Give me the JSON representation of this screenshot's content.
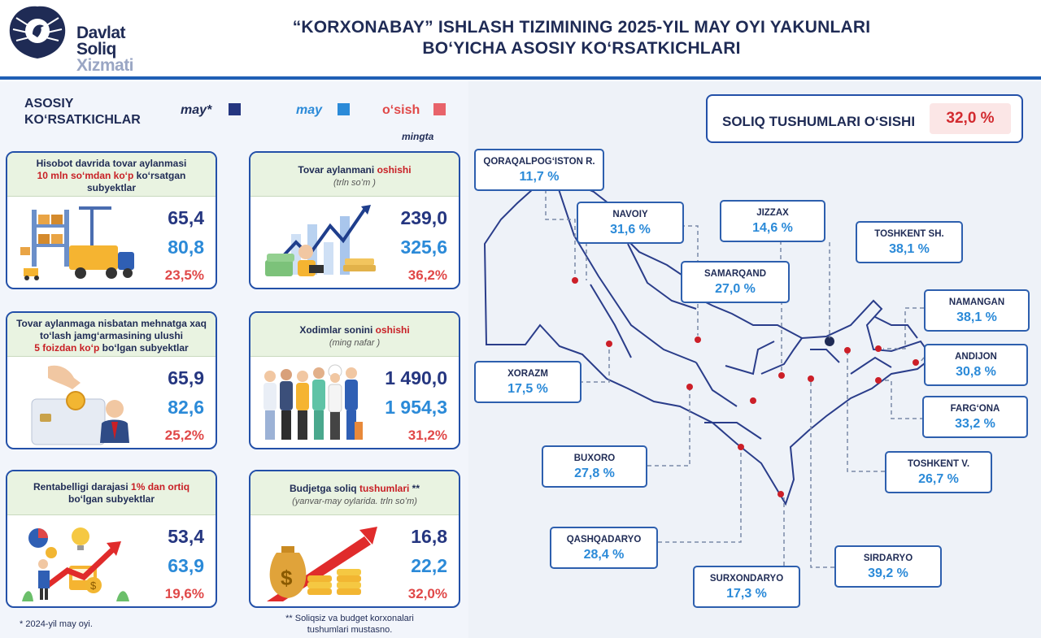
{
  "brand": {
    "line1": "Davlat",
    "line2": "Soliq",
    "line3": "Xizmati"
  },
  "header": {
    "title_line1": "“KORXONABAY” ISHLASH TIZIMINING 2025-YIL MAY OYI YAKUNLARI",
    "title_line2": "BOʻYICHA ASOSIY KOʻRSATKICHLARI"
  },
  "legend": {
    "title": "ASOSIY KOʻRSATKICHLAR",
    "items": [
      {
        "label": "may*",
        "color": "#253680"
      },
      {
        "label": "may",
        "color": "#2b8ad8"
      },
      {
        "label": "oʻsish",
        "color": "#e8636a"
      }
    ],
    "unit": "mingta"
  },
  "cards": [
    {
      "title_a": "Hisobot davrida tovar aylanmasi",
      "title_b": "10 mln soʻmdan koʻp",
      "title_c": "koʻrsatgan subyektlar",
      "subtitle": "",
      "icon": "warehouse-truck-icon",
      "prev": "65,4",
      "curr": "80,8",
      "growth": "23,5%"
    },
    {
      "title_a": "Tovar aylanmani",
      "title_b": "oshishi",
      "title_c": "",
      "subtitle": "(trln soʻm )",
      "icon": "money-growth-icon",
      "prev": "239,0",
      "curr": "325,6",
      "growth": "36,2%"
    },
    {
      "title_a": "Tovar aylanmaga nisbatan mehnatga xaq toʻlash jamgʻarmasining ulushi",
      "title_b": "5 foizdan koʻp",
      "title_c": "boʻlgan subyektlar",
      "subtitle": "",
      "icon": "payroll-card-icon",
      "prev": "65,9",
      "curr": "82,6",
      "growth": "25,2%"
    },
    {
      "title_a": "Xodimlar sonini",
      "title_b": "oshishi",
      "title_c": "",
      "subtitle": "(ming nafar )",
      "icon": "workers-icon",
      "prev": "1 490,0",
      "curr": "1 954,3",
      "growth": "31,2%"
    },
    {
      "title_a": "Rentabelligi darajasi",
      "title_b": "1% dan ortiq",
      "title_c": "boʻlgan subyektlar",
      "subtitle": "",
      "icon": "profit-chart-icon",
      "prev": "53,4",
      "curr": "63,9",
      "growth": "19,6%"
    },
    {
      "title_a": "Budjetga soliq",
      "title_b": "tushumlari",
      "title_c": "**",
      "subtitle": "(yanvar-may oylarida. trln soʻm)",
      "icon": "money-bag-icon",
      "prev": "16,8",
      "curr": "22,2",
      "growth": "32,0%"
    }
  ],
  "footnotes": {
    "prev_period": "*  2024-yil may oyi.",
    "budget_note": "** Soliqsiz va budget korxonalari tushumlari mustasno."
  },
  "map": {
    "total_label": "SOLIQ TUSHUMLARI OʻSISHI",
    "total_value": "32,0 %",
    "regions": [
      {
        "name": "QORAQALPOGʻISTON R.",
        "value": "11,7 %"
      },
      {
        "name": "NAVOIY",
        "value": "31,6 %"
      },
      {
        "name": "JIZZAX",
        "value": "14,6 %"
      },
      {
        "name": "TOSHKENT SH.",
        "value": "38,1 %"
      },
      {
        "name": "SAMARQAND",
        "value": "27,0 %"
      },
      {
        "name": "NAMANGAN",
        "value": "38,1 %"
      },
      {
        "name": "XORAZM",
        "value": "17,5 %"
      },
      {
        "name": "ANDIJON",
        "value": "30,8 %"
      },
      {
        "name": "FARGʻONA",
        "value": "33,2 %"
      },
      {
        "name": "BUXORO",
        "value": "27,8 %"
      },
      {
        "name": "TOSHKENT V.",
        "value": "26,7 %"
      },
      {
        "name": "QASHQADARYO",
        "value": "28,4 %"
      },
      {
        "name": "SIRDARYO",
        "value": "39,2 %"
      },
      {
        "name": "SURXONDARYO",
        "value": "17,3 %"
      }
    ]
  }
}
